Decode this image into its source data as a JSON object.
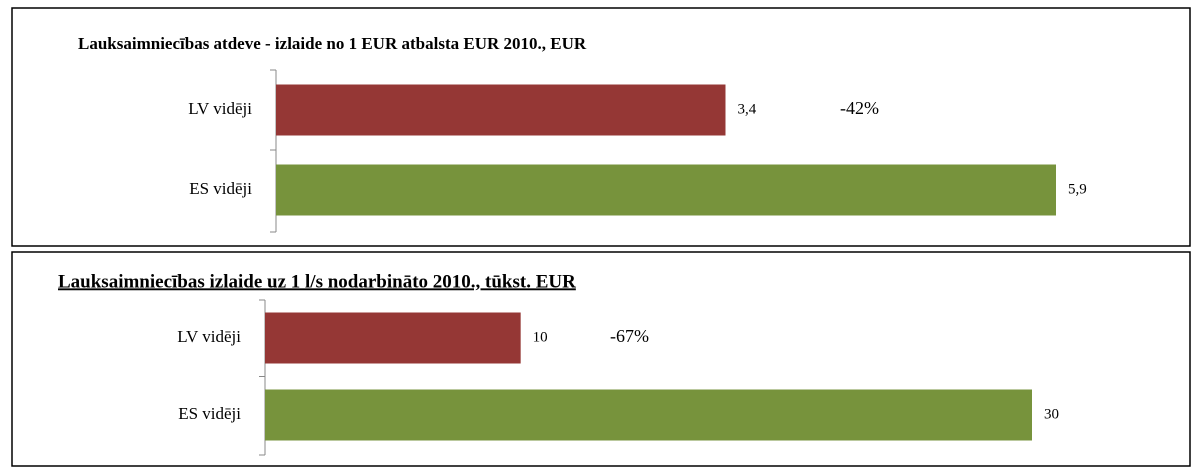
{
  "chart_data": [
    {
      "type": "bar",
      "title": "Lauksaimniecības atdeve - izlaide no 1 EUR atbalsta EUR 2010., EUR",
      "categories": [
        "LV vidēji",
        "ES vidēji"
      ],
      "values": [
        3.4,
        5.9
      ],
      "value_labels": [
        "3,4",
        "5,9"
      ],
      "colors": [
        "#953735",
        "#77933c"
      ],
      "annotation": "-42%"
    },
    {
      "type": "bar",
      "title": "Lauksaimniecības izlaide uz 1 l/s nodarbināto 2010., tūkst. EUR",
      "categories": [
        "LV vidēji",
        "ES vidēji"
      ],
      "values": [
        10,
        30
      ],
      "value_labels": [
        "10",
        "30"
      ],
      "colors": [
        "#953735",
        "#77933c"
      ],
      "annotation": "-67%"
    }
  ]
}
